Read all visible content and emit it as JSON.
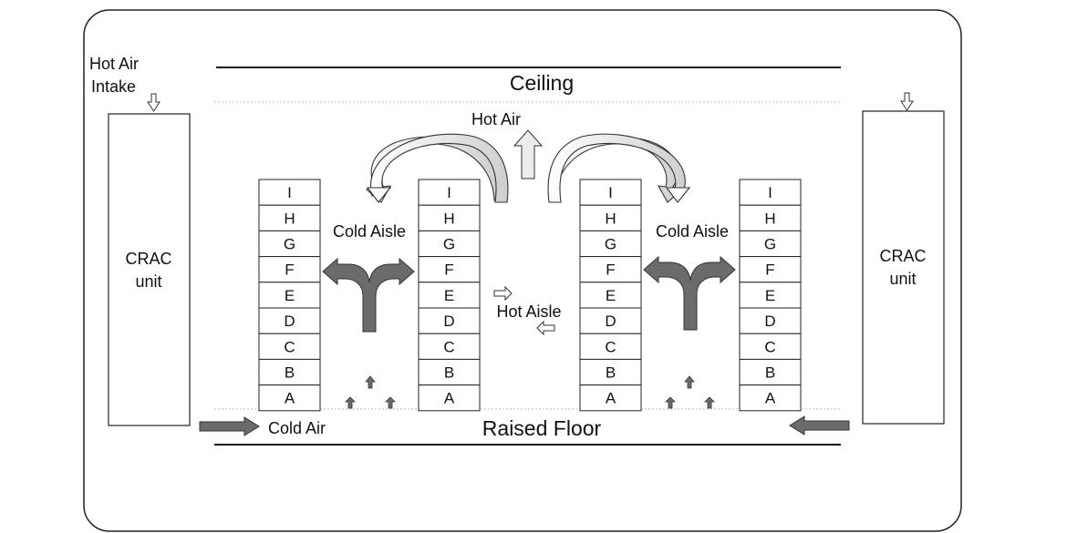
{
  "labels": {
    "ceiling": "Ceiling",
    "raised_floor": "Raised Floor",
    "hot_air": "Hot Air",
    "hot_air_intake_line1": "Hot Air",
    "hot_air_intake_line2": "Intake",
    "cold_aisle_left": "Cold Aisle",
    "cold_aisle_right": "Cold Aisle",
    "hot_aisle": "Hot Aisle",
    "cold_air": "Cold Air"
  },
  "crac_units": [
    {
      "line1": "CRAC",
      "line2": "unit"
    },
    {
      "line1": "CRAC",
      "line2": "unit"
    }
  ],
  "rack_slots": [
    "I",
    "H",
    "G",
    "F",
    "E",
    "D",
    "C",
    "B",
    "A"
  ],
  "colors": {
    "dark_arrow": "#6b6b6b",
    "light_arrow": "#f2f2f2",
    "outline": "#222222",
    "dashed_line": "#bbbbbb"
  }
}
